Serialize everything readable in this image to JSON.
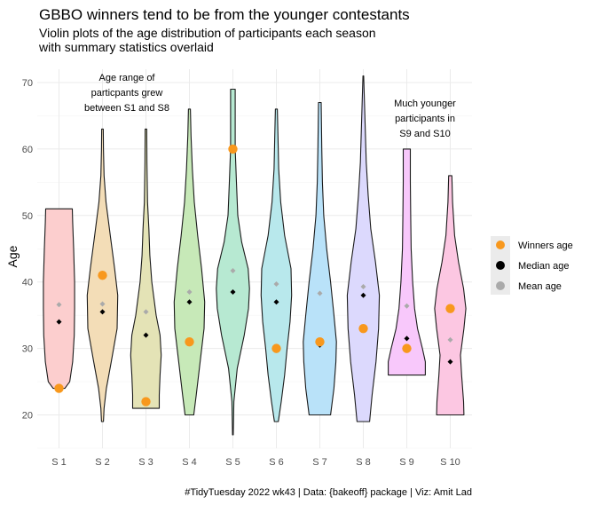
{
  "chart_data": {
    "type": "violin",
    "title": "GBBO winners tend to be from the younger contestants",
    "subtitle_lines": [
      "Violin plots of the age distribution of participants each season",
      "with summary statistics overlaid"
    ],
    "ylabel": "Age",
    "xlabel": "",
    "ylim": [
      15,
      72
    ],
    "y_ticks": [
      20,
      30,
      40,
      50,
      60,
      70
    ],
    "grid": true,
    "legend_position": "right",
    "categories": [
      "S 1",
      "S 2",
      "S 3",
      "S 4",
      "S 5",
      "S 6",
      "S 7",
      "S 8",
      "S 9",
      "S 10"
    ],
    "colors": {
      "violins": [
        "#fccece",
        "#f3ddb7",
        "#e4e3b6",
        "#c7e9b8",
        "#b7e9d2",
        "#b8e8ec",
        "#b9e2f9",
        "#dcd9fd",
        "#f8c8fb",
        "#fcc7e2"
      ],
      "winner": "#f8981d",
      "median": "#000000",
      "mean": "#aaaaaa"
    },
    "violins": [
      {
        "season": "S 1",
        "min": 24,
        "max": 51,
        "profile": [
          [
            24,
            0.3
          ],
          [
            25,
            0.55
          ],
          [
            28,
            0.7
          ],
          [
            32,
            0.78
          ],
          [
            36,
            0.8
          ],
          [
            40,
            0.8
          ],
          [
            45,
            0.75
          ],
          [
            49,
            0.7
          ],
          [
            51,
            0.68
          ]
        ]
      },
      {
        "season": "S 2",
        "min": 19,
        "max": 63,
        "profile": [
          [
            19,
            0.05
          ],
          [
            21,
            0.08
          ],
          [
            24,
            0.2
          ],
          [
            28,
            0.45
          ],
          [
            33,
            0.75
          ],
          [
            38,
            0.78
          ],
          [
            42,
            0.62
          ],
          [
            47,
            0.4
          ],
          [
            52,
            0.18
          ],
          [
            56,
            0.08
          ],
          [
            60,
            0.05
          ],
          [
            63,
            0.04
          ]
        ]
      },
      {
        "season": "S 3",
        "min": 21,
        "max": 63,
        "profile": [
          [
            21,
            0.68
          ],
          [
            23,
            0.68
          ],
          [
            26,
            0.72
          ],
          [
            29,
            0.78
          ],
          [
            32,
            0.72
          ],
          [
            35,
            0.52
          ],
          [
            40,
            0.3
          ],
          [
            44,
            0.2
          ],
          [
            48,
            0.15
          ],
          [
            52,
            0.08
          ],
          [
            58,
            0.05
          ],
          [
            63,
            0.04
          ]
        ]
      },
      {
        "season": "S 4",
        "min": 20,
        "max": 66,
        "profile": [
          [
            20,
            0.22
          ],
          [
            23,
            0.35
          ],
          [
            28,
            0.55
          ],
          [
            33,
            0.75
          ],
          [
            37,
            0.78
          ],
          [
            42,
            0.62
          ],
          [
            47,
            0.42
          ],
          [
            52,
            0.25
          ],
          [
            57,
            0.15
          ],
          [
            62,
            0.08
          ],
          [
            66,
            0.05
          ]
        ]
      },
      {
        "season": "S 5",
        "min": 17,
        "max": 69,
        "profile": [
          [
            17,
            0.02
          ],
          [
            22,
            0.05
          ],
          [
            27,
            0.22
          ],
          [
            32,
            0.58
          ],
          [
            36,
            0.8
          ],
          [
            39,
            0.85
          ],
          [
            42,
            0.78
          ],
          [
            46,
            0.45
          ],
          [
            50,
            0.25
          ],
          [
            55,
            0.18
          ],
          [
            60,
            0.12
          ],
          [
            65,
            0.12
          ],
          [
            69,
            0.12
          ]
        ]
      },
      {
        "season": "S 6",
        "min": 19,
        "max": 66,
        "profile": [
          [
            19,
            0.1
          ],
          [
            22,
            0.25
          ],
          [
            26,
            0.42
          ],
          [
            30,
            0.55
          ],
          [
            34,
            0.7
          ],
          [
            38,
            0.78
          ],
          [
            42,
            0.75
          ],
          [
            47,
            0.42
          ],
          [
            52,
            0.22
          ],
          [
            57,
            0.12
          ],
          [
            62,
            0.08
          ],
          [
            66,
            0.05
          ]
        ]
      },
      {
        "season": "S 7",
        "min": 20,
        "max": 67,
        "profile": [
          [
            20,
            0.55
          ],
          [
            24,
            0.72
          ],
          [
            28,
            0.82
          ],
          [
            31,
            0.85
          ],
          [
            35,
            0.72
          ],
          [
            40,
            0.55
          ],
          [
            45,
            0.35
          ],
          [
            50,
            0.2
          ],
          [
            55,
            0.13
          ],
          [
            60,
            0.1
          ],
          [
            64,
            0.08
          ],
          [
            67,
            0.07
          ]
        ]
      },
      {
        "season": "S 8",
        "min": 19,
        "max": 71,
        "profile": [
          [
            19,
            0.32
          ],
          [
            23,
            0.45
          ],
          [
            28,
            0.65
          ],
          [
            33,
            0.78
          ],
          [
            38,
            0.82
          ],
          [
            43,
            0.62
          ],
          [
            48,
            0.38
          ],
          [
            53,
            0.25
          ],
          [
            58,
            0.15
          ],
          [
            63,
            0.1
          ],
          [
            67,
            0.06
          ],
          [
            71,
            0.02
          ]
        ]
      },
      {
        "season": "S 9",
        "min": 26,
        "max": 60,
        "profile": [
          [
            26,
            0.95
          ],
          [
            28,
            0.95
          ],
          [
            30,
            0.8
          ],
          [
            33,
            0.55
          ],
          [
            36,
            0.4
          ],
          [
            40,
            0.3
          ],
          [
            45,
            0.22
          ],
          [
            50,
            0.2
          ],
          [
            55,
            0.18
          ],
          [
            60,
            0.18
          ]
        ]
      },
      {
        "season": "S 10",
        "min": 20,
        "max": 56,
        "profile": [
          [
            20,
            0.7
          ],
          [
            22,
            0.68
          ],
          [
            26,
            0.58
          ],
          [
            29,
            0.52
          ],
          [
            33,
            0.7
          ],
          [
            36,
            0.8
          ],
          [
            39,
            0.68
          ],
          [
            43,
            0.42
          ],
          [
            47,
            0.22
          ],
          [
            52,
            0.12
          ],
          [
            56,
            0.08
          ]
        ]
      }
    ],
    "series": [
      {
        "name": "Winners age",
        "shape": "circle",
        "values": [
          24,
          41,
          22,
          31,
          60,
          30,
          31,
          33,
          30,
          36
        ]
      },
      {
        "name": "Median age",
        "shape": "diamond",
        "values": [
          34,
          35.5,
          32,
          37,
          38.5,
          37,
          30.5,
          38,
          31.5,
          28
        ]
      },
      {
        "name": "Mean age",
        "shape": "diamond",
        "values": [
          36.6,
          36.7,
          35.5,
          38.5,
          41.7,
          39.7,
          38.3,
          39.3,
          36.4,
          31.3
        ]
      }
    ],
    "legend": [
      "Winners age",
      "Median age",
      "Mean age"
    ],
    "annotations": [
      {
        "id": "s1-s8",
        "lines": [
          "Age range of",
          "particpants grew",
          "between S1 and S8"
        ]
      },
      {
        "id": "s9-s10",
        "lines": [
          "Much younger",
          "participants in",
          "S9 and S10"
        ]
      }
    ]
  },
  "caption": "#TidyTuesday 2022 wk43 | Data: {bakeoff} package | Viz: Amit Lad"
}
